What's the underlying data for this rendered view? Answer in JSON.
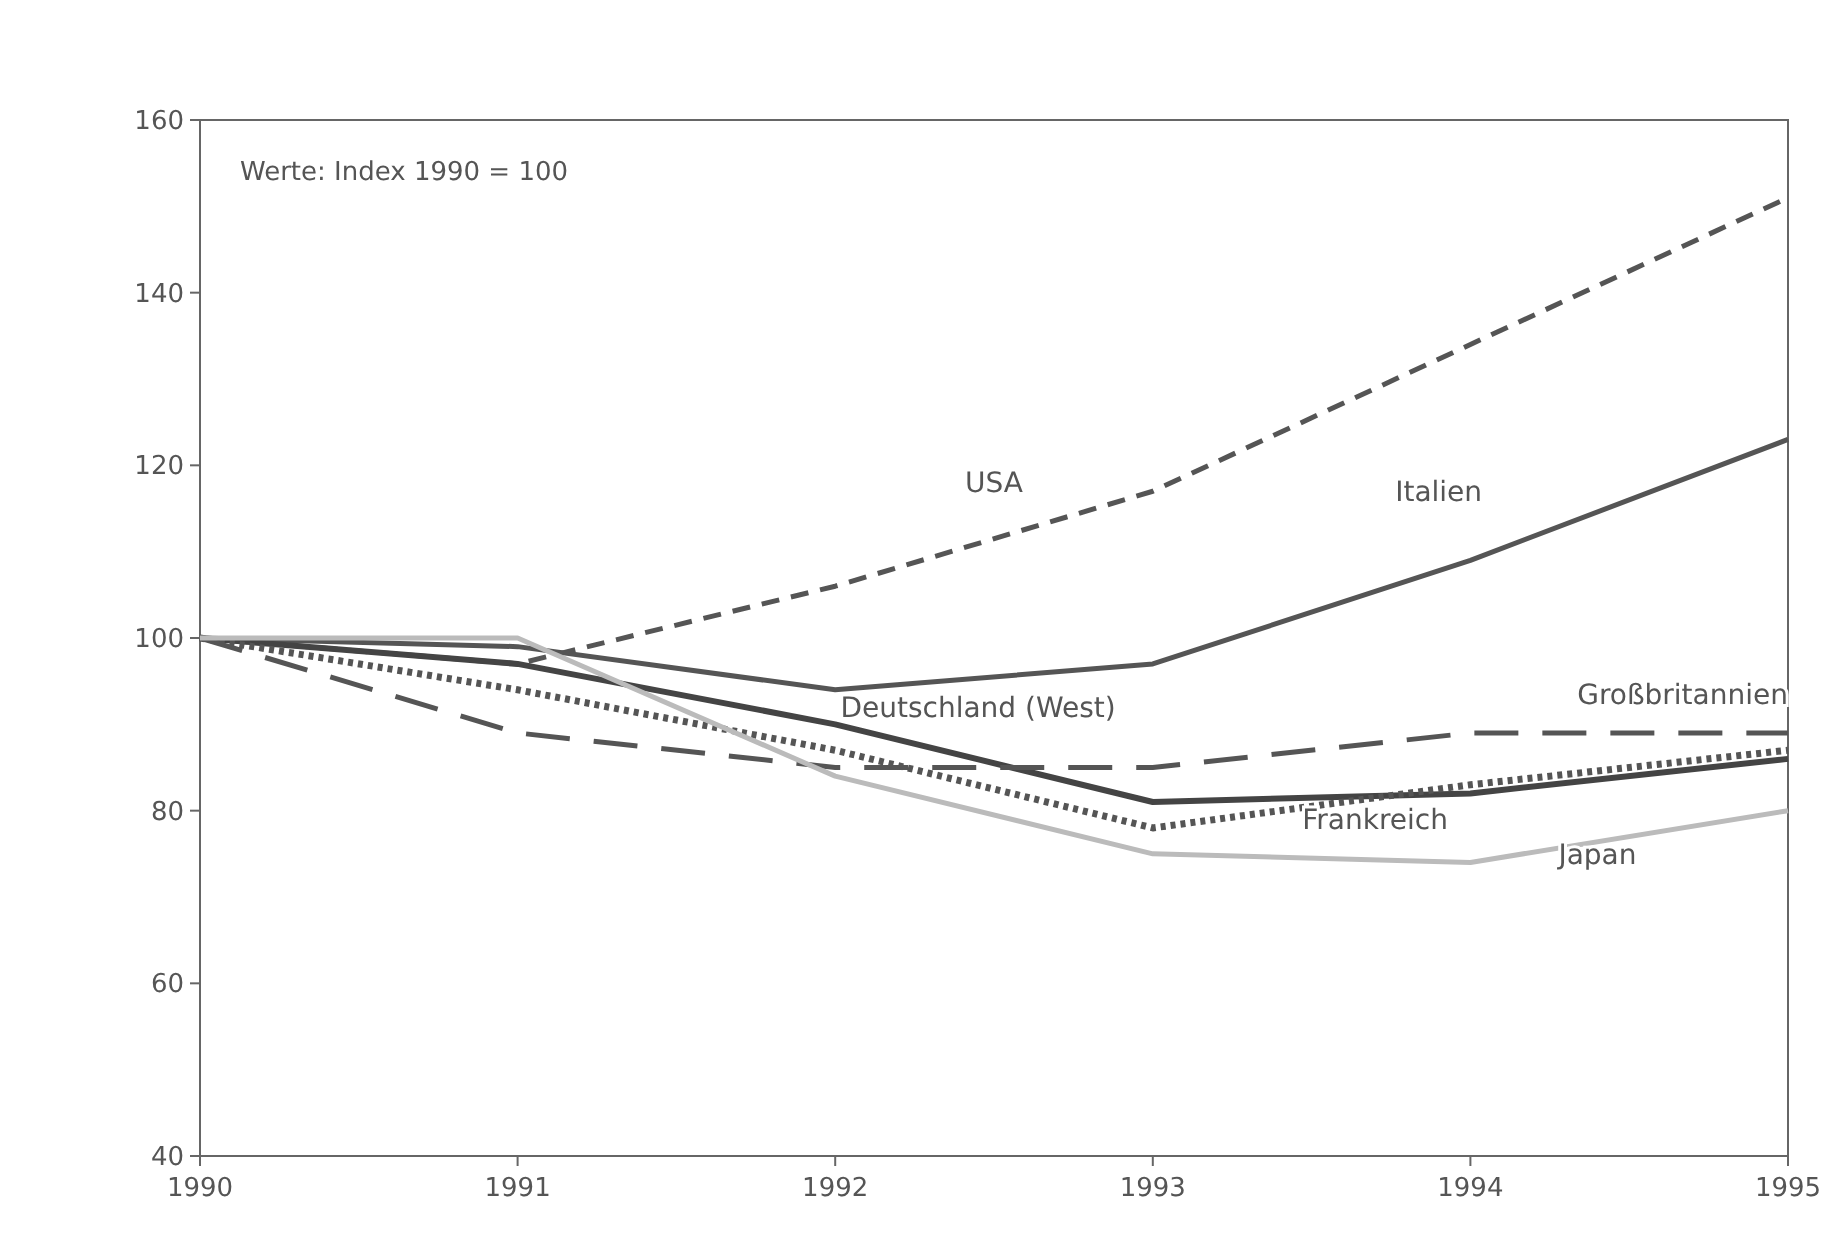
{
  "chart_data": {
    "type": "line",
    "x": [
      1990,
      1991,
      1992,
      1993,
      1994,
      1995
    ],
    "xlim": [
      1990,
      1995
    ],
    "xticks": [
      1990,
      1991,
      1992,
      1993,
      1994,
      1995
    ],
    "ylim": [
      40,
      160
    ],
    "yticks": [
      40,
      60,
      80,
      100,
      120,
      140,
      160
    ],
    "grid": false,
    "annotations": [
      "Werte: Index 1990 = 100"
    ],
    "series": [
      {
        "name": "USA",
        "color": "#555555",
        "line_style": "dashed",
        "values": [
          100,
          97,
          106,
          117,
          134,
          151
        ]
      },
      {
        "name": "Italien",
        "color": "#555555",
        "line_style": "solid",
        "values": [
          100,
          99,
          94,
          97,
          109,
          123
        ]
      },
      {
        "name": "Deutschland (West)",
        "color": "#444444",
        "line_style": "solid",
        "values": [
          100,
          97,
          90,
          81,
          82,
          86
        ]
      },
      {
        "name": "Großbritannien",
        "color": "#555555",
        "line_style": "dashed",
        "values": [
          100,
          89,
          85,
          85,
          89,
          89
        ]
      },
      {
        "name": "Frankreich",
        "color": "#555555",
        "line_style": "dotted",
        "values": [
          100,
          94,
          87,
          78,
          83,
          87
        ]
      },
      {
        "name": "Japan",
        "color": "#bbbbbb",
        "line_style": "solid",
        "values": [
          100,
          100,
          84,
          75,
          74,
          80
        ]
      }
    ]
  }
}
